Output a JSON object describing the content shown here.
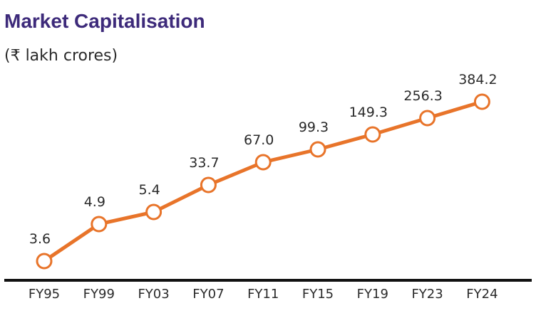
{
  "chart_data": {
    "type": "line",
    "title": "Market Capitalisation",
    "subtitle": "(₹ lakh crores)",
    "categories": [
      "FY95",
      "FY99",
      "FY03",
      "FY07",
      "FY11",
      "FY15",
      "FY19",
      "FY23",
      "FY24"
    ],
    "series": [
      {
        "values": [
          3.6,
          4.9,
          5.4,
          33.7,
          67.0,
          99.3,
          149.3,
          256.3,
          384.2
        ],
        "labels": [
          "3.6",
          "4.9",
          "5.4",
          "33.7",
          "67.0",
          "99.3",
          "149.3",
          "256.3",
          "384.2"
        ]
      }
    ],
    "grid": false,
    "line_color": "#e8742a",
    "axis_color": "#111111"
  }
}
